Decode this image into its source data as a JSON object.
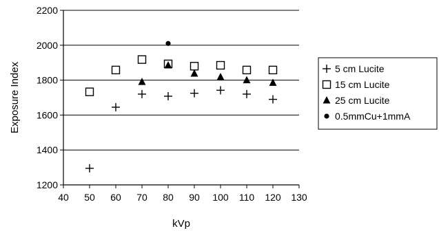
{
  "chart_data": {
    "type": "scatter",
    "title": "",
    "xlabel": "kVp",
    "ylabel": "Exposure Index",
    "xlim": [
      40,
      130
    ],
    "ylim": [
      1200,
      2200
    ],
    "xticks": [
      40,
      50,
      60,
      70,
      80,
      90,
      100,
      110,
      120,
      130
    ],
    "yticks": [
      1200,
      1400,
      1600,
      1800,
      2000,
      2200
    ],
    "grid": "horizontal",
    "legend_position": "right",
    "series": [
      {
        "name": "5 cm Lucite",
        "marker": "plus",
        "points": [
          [
            50,
            1295
          ],
          [
            60,
            1645
          ],
          [
            70,
            1720
          ],
          [
            80,
            1708
          ],
          [
            90,
            1725
          ],
          [
            100,
            1742
          ],
          [
            110,
            1720
          ],
          [
            120,
            1690
          ]
        ]
      },
      {
        "name": "15 cm Lucite",
        "marker": "open-square",
        "points": [
          [
            50,
            1733
          ],
          [
            60,
            1858
          ],
          [
            70,
            1918
          ],
          [
            80,
            1893
          ],
          [
            90,
            1880
          ],
          [
            100,
            1885
          ],
          [
            110,
            1858
          ],
          [
            120,
            1858
          ]
        ]
      },
      {
        "name": "25 cm Lucite",
        "marker": "filled-triangle",
        "points": [
          [
            70,
            1790
          ],
          [
            80,
            1885
          ],
          [
            90,
            1838
          ],
          [
            100,
            1818
          ],
          [
            110,
            1800
          ],
          [
            120,
            1785
          ]
        ]
      },
      {
        "name": "0.5mmCu+1mmA",
        "marker": "filled-circle",
        "points": [
          [
            80,
            2010
          ]
        ]
      }
    ]
  }
}
